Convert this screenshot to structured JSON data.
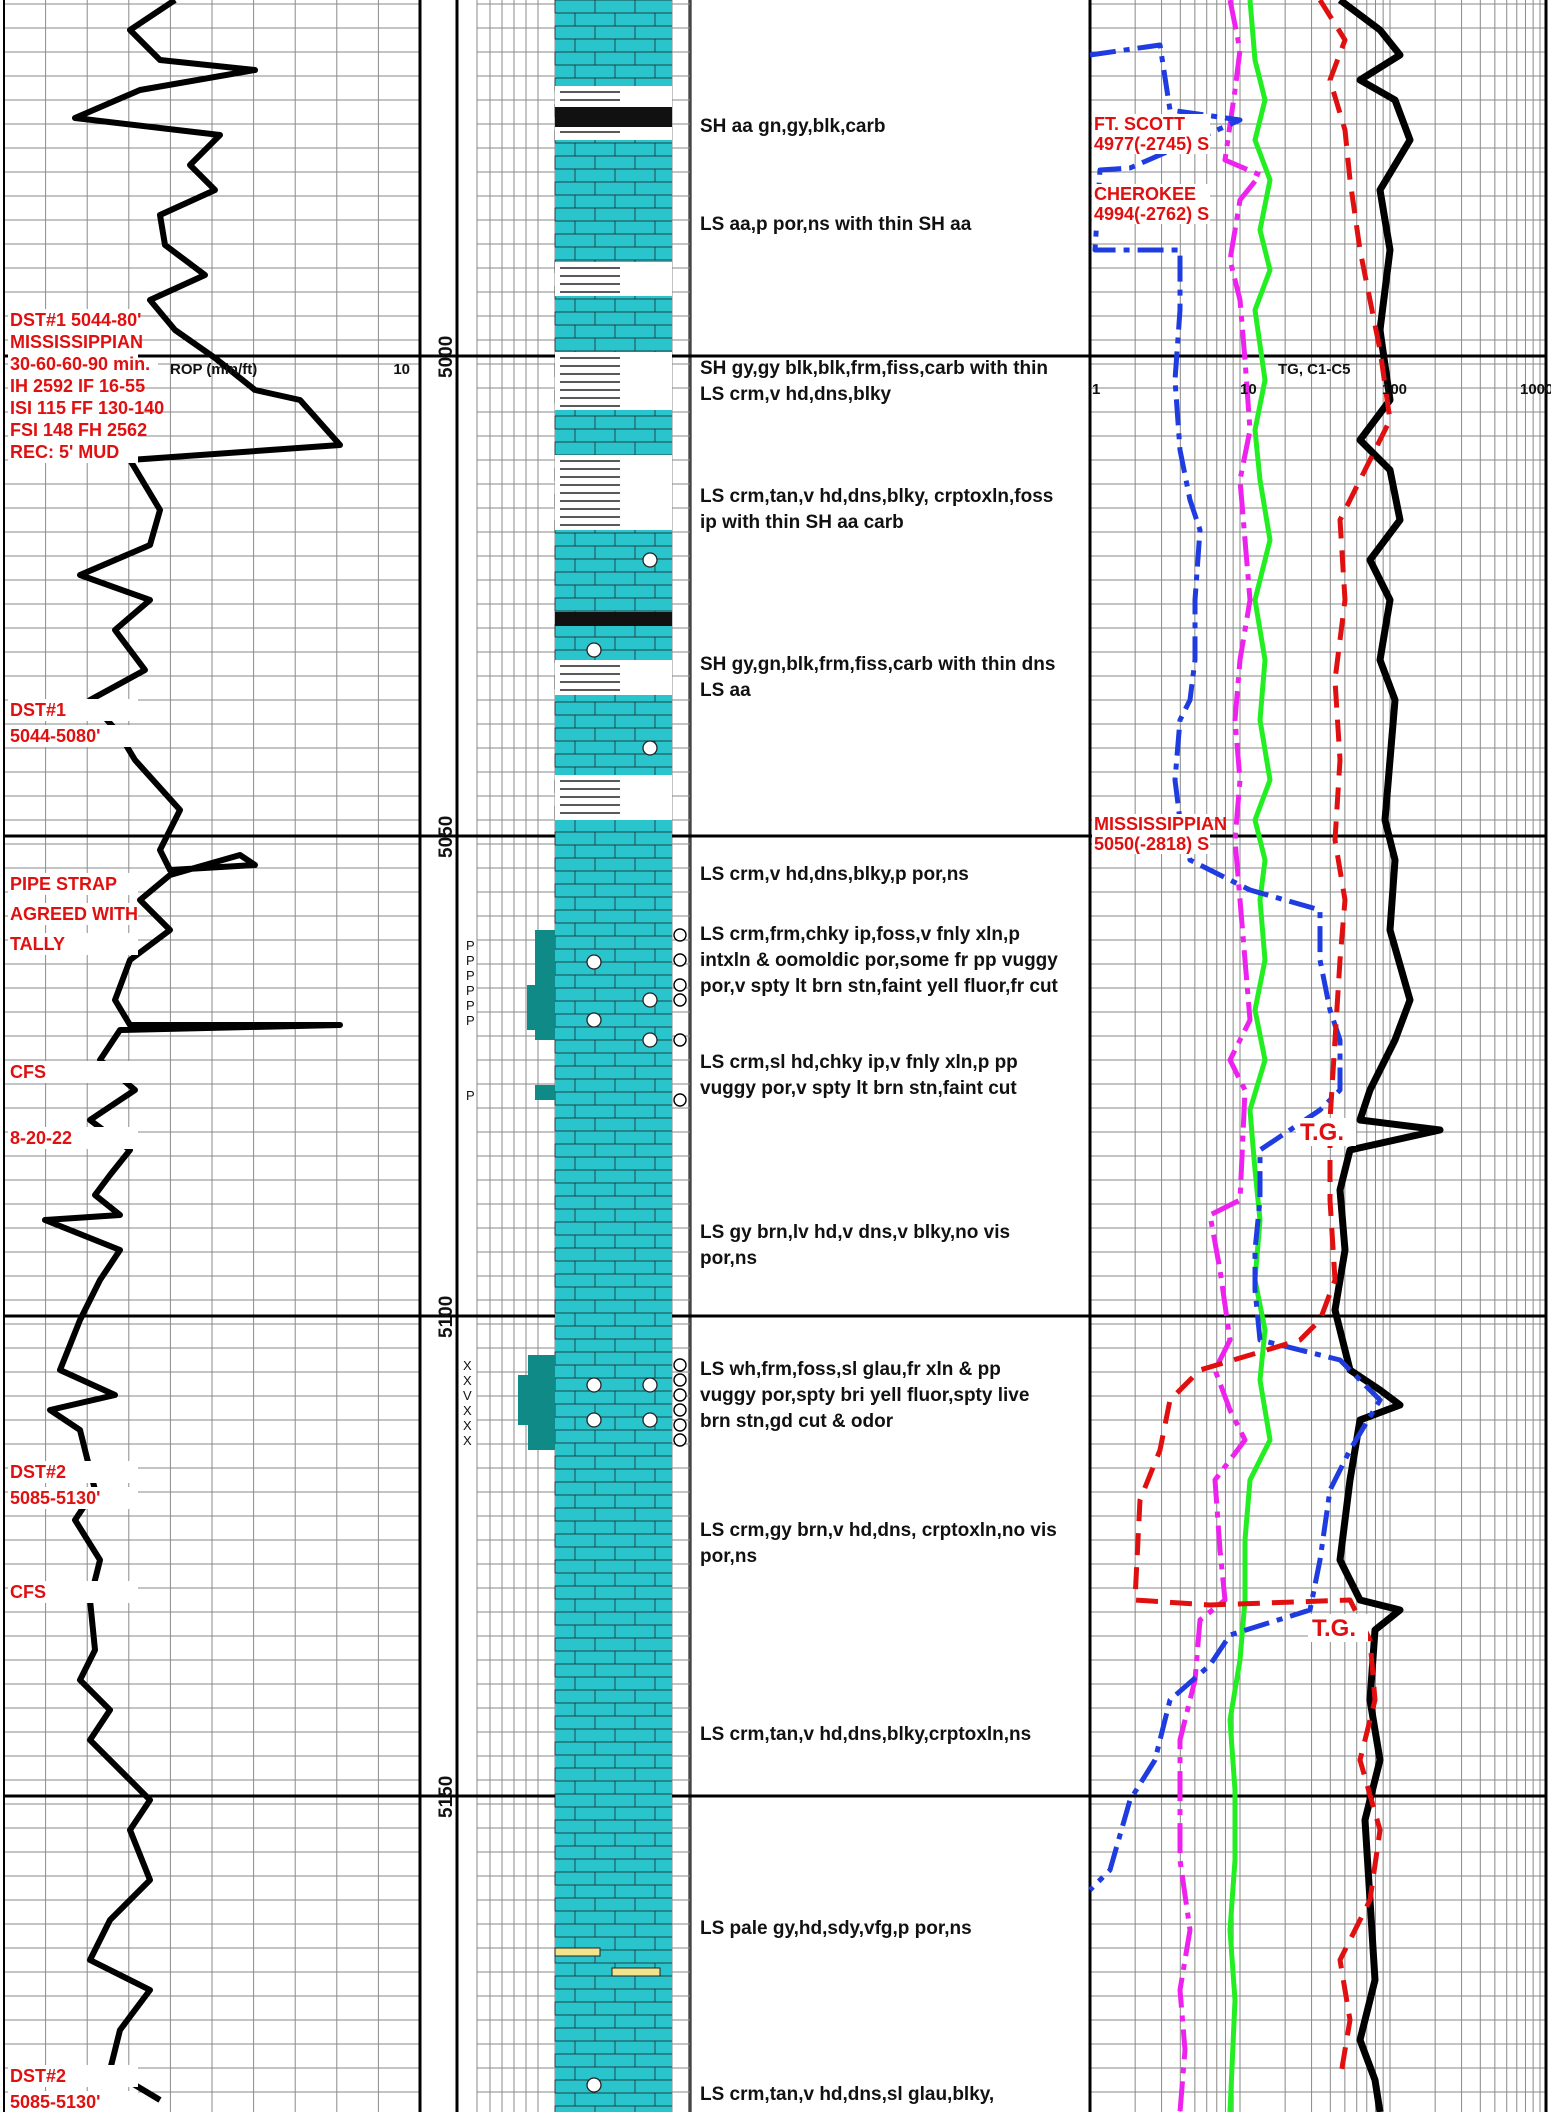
{
  "rop_track": {
    "scale_left": "0",
    "title": "ROP (min/ft)",
    "scale_right": "10"
  },
  "gas_track": {
    "title": "TG, C1-C5",
    "scale": [
      "1",
      "10",
      "100",
      "1000"
    ]
  },
  "depth_markers": [
    "5000",
    "5050",
    "5100",
    "5150"
  ],
  "left_annotations": [
    {
      "lines": [
        "DST#1 5044-80'",
        "MISSISSIPPIAN",
        "30-60-60-90 min.",
        "IH 2592 IF 16-55",
        "ISI 115 FF 130-140",
        "FSI 148 FH 2562",
        "REC: 5' MUD"
      ]
    },
    {
      "lines": [
        "DST#1",
        "5044-5080'"
      ]
    },
    {
      "lines": [
        "PIPE STRAP",
        "AGREED WITH",
        "TALLY"
      ]
    },
    {
      "lines": [
        "CFS"
      ]
    },
    {
      "lines": [
        "8-20-22"
      ]
    },
    {
      "lines": [
        "DST#2",
        "5085-5130'"
      ]
    },
    {
      "lines": [
        "CFS"
      ]
    },
    {
      "lines": [
        "DST#2",
        "5085-5130'"
      ]
    }
  ],
  "formation_tops": [
    {
      "lines": [
        "FT. SCOTT",
        "4977(-2745) S"
      ]
    },
    {
      "lines": [
        "CHEROKEE",
        "4994(-2762) S"
      ]
    },
    {
      "lines": [
        "MISSISSIPPIAN",
        "5050(-2818) S"
      ]
    }
  ],
  "tg_labels": [
    "T.G.",
    "T.G."
  ],
  "descriptions": [
    {
      "lines": [
        "SH aa gn,gy,blk,carb"
      ]
    },
    {
      "lines": [
        "LS aa,p por,ns with thin SH aa"
      ]
    },
    {
      "lines": [
        "SH gy,gy blk,blk,frm,fiss,carb with thin",
        "LS crm,v hd,dns,blky"
      ]
    },
    {
      "lines": [
        "LS crm,tan,v hd,dns,blky, crptoxln,foss",
        "ip with thin SH aa carb"
      ]
    },
    {
      "lines": [
        "SH gy,gn,blk,frm,fiss,carb with thin dns",
        "LS aa"
      ]
    },
    {
      "lines": [
        "LS crm,v hd,dns,blky,p por,ns"
      ]
    },
    {
      "lines": [
        "LS crm,frm,chky ip,foss,v fnly xln,p",
        "intxln & oomoldic por,some fr pp vuggy",
        "por,v spty lt brn stn,faint yell fluor,fr cut"
      ]
    },
    {
      "lines": [
        "LS crm,sl hd,chky ip,v fnly xln,p pp",
        "vuggy por,v spty lt brn stn,faint cut"
      ]
    },
    {
      "lines": [
        "LS gy brn,lv hd,v dns,v blky,no vis",
        "por,ns"
      ]
    },
    {
      "lines": [
        "LS wh,frm,foss,sl glau,fr xln  & pp",
        "vuggy por,spty bri yell fluor,spty live",
        "brn stn,gd cut & odor"
      ]
    },
    {
      "lines": [
        "LS crm,gy brn,v hd,dns, crptoxln,no vis",
        "por,ns"
      ]
    },
    {
      "lines": [
        "LS crm,tan,v hd,dns,blky,crptoxln,ns"
      ]
    },
    {
      "lines": [
        "LS pale gy,hd,sdy,vfg,p por,ns"
      ]
    },
    {
      "lines": [
        "LS crm,tan,v hd,dns,sl glau,blky,"
      ]
    }
  ],
  "porosity_marks": [
    "P",
    "P",
    "P",
    "P",
    "P",
    "P",
    "P"
  ],
  "show_marks": [
    "X",
    "X",
    "V",
    "X",
    "X",
    "X"
  ],
  "colors": {
    "limestone": "#29c4cc",
    "shale": "#111111",
    "porosity_fill": "#0f8a86",
    "annotation": "#e01010",
    "rop_curve": "#000000",
    "tg_curve": "#000000",
    "c1_curve": "#22ee22",
    "c2_curve": "#ee22ee",
    "c3_curve": "#1e3ce0",
    "c4_curve": "#e01010",
    "sand_fill": "#f2e48a"
  }
}
